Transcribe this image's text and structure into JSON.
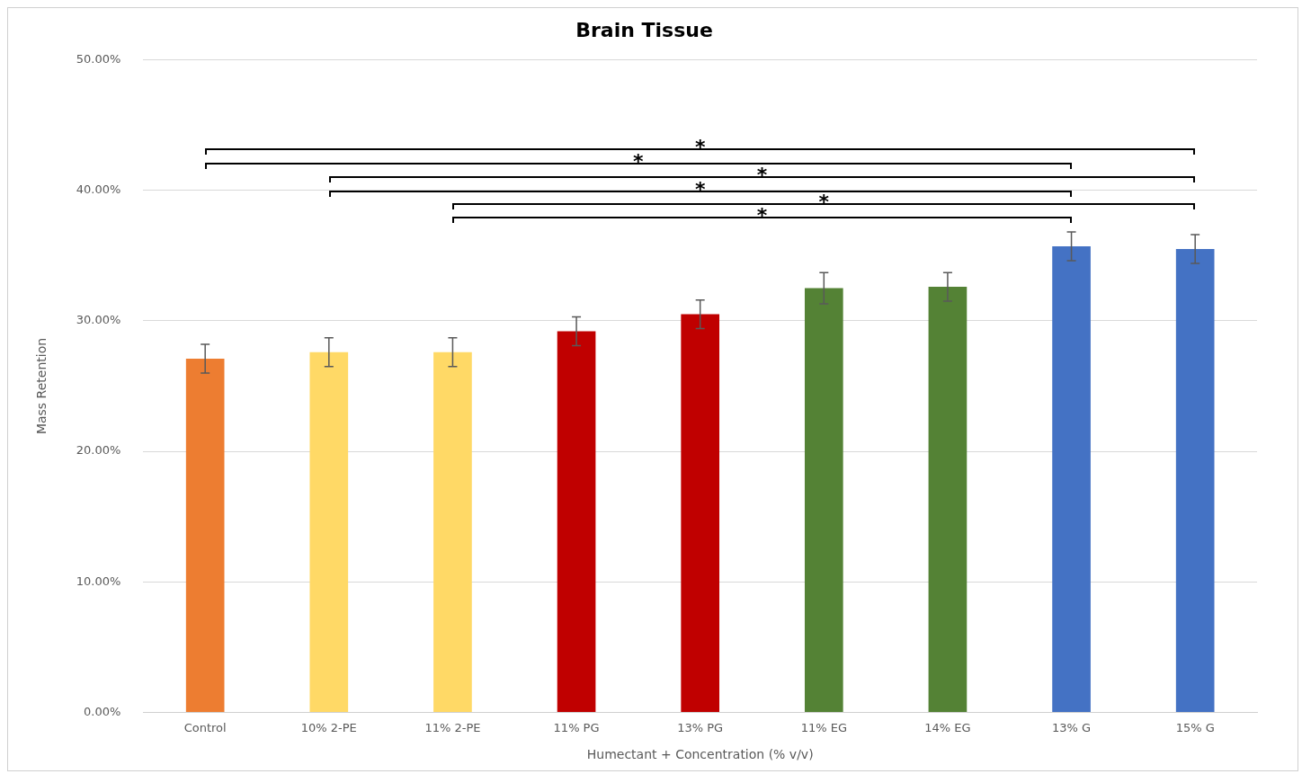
{
  "chart_data": {
    "type": "bar",
    "title": "Brain Tissue",
    "xlabel": "Humectant + Concentration (% v/v)",
    "ylabel": "Mass Retention",
    "categories": [
      "Control",
      "10% 2-PE",
      "11% 2-PE",
      "11% PG",
      "13% PG",
      "11% EG",
      "14% EG",
      "13% G",
      "15% G"
    ],
    "values": [
      27.1,
      27.6,
      27.6,
      29.2,
      30.5,
      32.5,
      32.6,
      35.7,
      35.5
    ],
    "colors": [
      "#ed7d31",
      "#ffd966",
      "#ffd966",
      "#c00000",
      "#c00000",
      "#548235",
      "#548235",
      "#4472c4",
      "#4472c4"
    ],
    "errors": [
      1.1,
      1.1,
      1.1,
      1.1,
      1.1,
      1.2,
      1.1,
      1.1,
      1.1
    ],
    "ylim": [
      0,
      50
    ],
    "yticks": [
      {
        "value": 0,
        "label": "0.00%"
      },
      {
        "value": 10,
        "label": "10.00%"
      },
      {
        "value": 20,
        "label": "20.00%"
      },
      {
        "value": 30,
        "label": "30.00%"
      },
      {
        "value": 40,
        "label": "40.00%"
      },
      {
        "value": 50,
        "label": "50.00%"
      }
    ],
    "grid": "y",
    "legend": false,
    "annotations": [
      "*",
      "*",
      "*",
      "*",
      "*",
      "*"
    ]
  }
}
